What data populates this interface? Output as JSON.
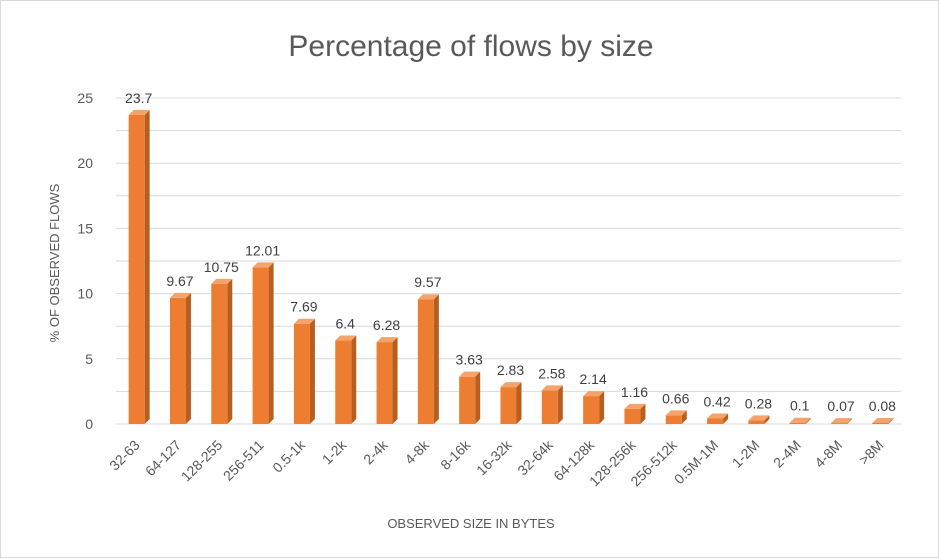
{
  "chart_data": {
    "type": "bar",
    "title": "Percentage of flows by size",
    "xlabel": "OBSERVED SIZE IN BYTES",
    "ylabel": "% OF OBSERVED FLOWS",
    "ylim": [
      0,
      25
    ],
    "yticks": [
      0,
      5,
      10,
      15,
      20,
      25
    ],
    "grid": true,
    "legend": "none",
    "bar_color": "#ED7D31",
    "bar_side_color": "#B85F20",
    "bar_top_color": "#F4A36B",
    "categories": [
      "32-63",
      "64-127",
      "128-255",
      "256-511",
      "0.5-1k",
      "1-2k",
      "2-4k",
      "4-8k",
      "8-16k",
      "16-32k",
      "32-64k",
      "64-128k",
      "128-256k",
      "256-512k",
      "0.5M-1M",
      "1-2M",
      "2-4M",
      "4-8M",
      ">8M"
    ],
    "values": [
      23.7,
      9.67,
      10.75,
      12.01,
      7.69,
      6.4,
      6.28,
      9.57,
      3.63,
      2.83,
      2.58,
      2.14,
      1.16,
      0.66,
      0.42,
      0.28,
      0.1,
      0.07,
      0.08
    ],
    "data_labels": [
      "23.7",
      "9.67",
      "10.75",
      "12.01",
      "7.69",
      "6.4",
      "6.28",
      "9.57",
      "3.63",
      "2.83",
      "2.58",
      "2.14",
      "1.16",
      "0.66",
      "0.42",
      "0.28",
      "0.1",
      "0.07",
      "0.08"
    ]
  }
}
